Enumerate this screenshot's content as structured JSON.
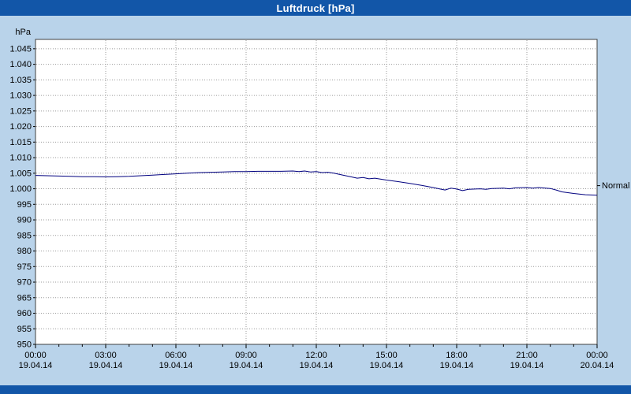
{
  "titlebar": {
    "title": "Luftdruck [hPa]",
    "bg_color": "#1256a8",
    "fg_color": "#ffffff"
  },
  "chart_data": {
    "type": "line",
    "title": "Luftdruck [hPa]",
    "ylabel": "hPa",
    "ylim": [
      950,
      1048
    ],
    "ytick_step": 5,
    "grid": true,
    "bg_color": "#b9d3ea",
    "plot_bg_color": "#ffffff",
    "grid_color": "#9b9b9b",
    "line_color": "#00007f",
    "y_ticks": [
      {
        "value": 1045,
        "label": "1.045"
      },
      {
        "value": 1040,
        "label": "1.040"
      },
      {
        "value": 1035,
        "label": "1.035"
      },
      {
        "value": 1030,
        "label": "1.030"
      },
      {
        "value": 1025,
        "label": "1.025"
      },
      {
        "value": 1020,
        "label": "1.020"
      },
      {
        "value": 1015,
        "label": "1.015"
      },
      {
        "value": 1010,
        "label": "1.010"
      },
      {
        "value": 1005,
        "label": "1.005"
      },
      {
        "value": 1000,
        "label": "1.000"
      },
      {
        "value": 995,
        "label": "995"
      },
      {
        "value": 990,
        "label": "990"
      },
      {
        "value": 985,
        "label": "985"
      },
      {
        "value": 980,
        "label": "980"
      },
      {
        "value": 975,
        "label": "975"
      },
      {
        "value": 970,
        "label": "970"
      },
      {
        "value": 965,
        "label": "965"
      },
      {
        "value": 960,
        "label": "960"
      },
      {
        "value": 955,
        "label": "955"
      },
      {
        "value": 950,
        "label": "950"
      }
    ],
    "x_ticks": [
      {
        "hour": 0,
        "time": "00:00",
        "date": "19.04.14"
      },
      {
        "hour": 3,
        "time": "03:00",
        "date": "19.04.14"
      },
      {
        "hour": 6,
        "time": "06:00",
        "date": "19.04.14"
      },
      {
        "hour": 9,
        "time": "09:00",
        "date": "19.04.14"
      },
      {
        "hour": 12,
        "time": "12:00",
        "date": "19.04.14"
      },
      {
        "hour": 15,
        "time": "15:00",
        "date": "19.04.14"
      },
      {
        "hour": 18,
        "time": "18:00",
        "date": "19.04.14"
      },
      {
        "hour": 21,
        "time": "21:00",
        "date": "19.04.14"
      },
      {
        "hour": 24,
        "time": "00:00",
        "date": "20.04.14"
      }
    ],
    "normal_marker": {
      "label": "Normal",
      "value": 1001
    },
    "series": [
      {
        "name": "Luftdruck",
        "points": [
          [
            0,
            1004.3
          ],
          [
            0.5,
            1004.2
          ],
          [
            1,
            1004.1
          ],
          [
            1.5,
            1004.0
          ],
          [
            2,
            1003.9
          ],
          [
            2.5,
            1003.9
          ],
          [
            3,
            1003.8
          ],
          [
            3.5,
            1003.9
          ],
          [
            4,
            1004.0
          ],
          [
            4.5,
            1004.2
          ],
          [
            5,
            1004.4
          ],
          [
            5.5,
            1004.6
          ],
          [
            6,
            1004.8
          ],
          [
            6.5,
            1005.0
          ],
          [
            7,
            1005.2
          ],
          [
            7.5,
            1005.3
          ],
          [
            8,
            1005.4
          ],
          [
            8.5,
            1005.5
          ],
          [
            9,
            1005.5
          ],
          [
            9.5,
            1005.6
          ],
          [
            10,
            1005.6
          ],
          [
            10.5,
            1005.6
          ],
          [
            11,
            1005.7
          ],
          [
            11.25,
            1005.5
          ],
          [
            11.5,
            1005.7
          ],
          [
            11.75,
            1005.4
          ],
          [
            12,
            1005.5
          ],
          [
            12.25,
            1005.2
          ],
          [
            12.5,
            1005.3
          ],
          [
            12.75,
            1005.0
          ],
          [
            13,
            1004.6
          ],
          [
            13.5,
            1003.8
          ],
          [
            13.75,
            1003.4
          ],
          [
            14,
            1003.6
          ],
          [
            14.25,
            1003.2
          ],
          [
            14.5,
            1003.4
          ],
          [
            15,
            1002.8
          ],
          [
            15.5,
            1002.3
          ],
          [
            16,
            1001.7
          ],
          [
            16.5,
            1001.1
          ],
          [
            17,
            1000.4
          ],
          [
            17.25,
            1000.0
          ],
          [
            17.5,
            999.6
          ],
          [
            17.75,
            1000.2
          ],
          [
            18,
            999.9
          ],
          [
            18.25,
            999.4
          ],
          [
            18.5,
            999.8
          ],
          [
            19,
            1000.0
          ],
          [
            19.25,
            999.8
          ],
          [
            19.5,
            1000.1
          ],
          [
            20,
            1000.2
          ],
          [
            20.25,
            1000.0
          ],
          [
            20.5,
            1000.3
          ],
          [
            21,
            1000.4
          ],
          [
            21.25,
            1000.2
          ],
          [
            21.5,
            1000.4
          ],
          [
            22,
            1000.1
          ],
          [
            22.25,
            999.6
          ],
          [
            22.5,
            999.0
          ],
          [
            23,
            998.5
          ],
          [
            23.5,
            998.1
          ],
          [
            24,
            997.9
          ]
        ]
      }
    ]
  }
}
